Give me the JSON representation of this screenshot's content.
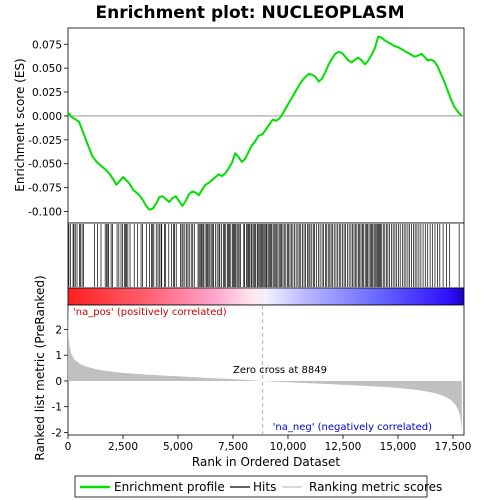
{
  "chart_data": {
    "type": "line",
    "title": "Enrichment plot: NUCLEOPLASM",
    "es_panel": {
      "ylabel": "Enrichment score (ES)",
      "ylim": [
        -0.112,
        0.092
      ],
      "yticks": [
        -0.1,
        -0.075,
        -0.05,
        -0.025,
        0.0,
        0.025,
        0.05,
        0.075
      ],
      "ytick_labels": [
        "-0.100",
        "-0.075",
        "-0.050",
        "-0.025",
        "0.000",
        "0.025",
        "0.050",
        "0.075"
      ],
      "series": [
        {
          "name": "Enrichment profile",
          "color": "#00e000",
          "x": [
            0,
            150,
            300,
            500,
            700,
            900,
            1100,
            1300,
            1500,
            1700,
            1900,
            2050,
            2200,
            2350,
            2500,
            2650,
            2800,
            2950,
            3100,
            3250,
            3400,
            3550,
            3700,
            3850,
            4000,
            4150,
            4300,
            4450,
            4600,
            4750,
            4900,
            5050,
            5200,
            5350,
            5500,
            5650,
            5800,
            5950,
            6100,
            6250,
            6400,
            6550,
            6700,
            6850,
            7000,
            7150,
            7300,
            7450,
            7600,
            7750,
            7900,
            8050,
            8200,
            8350,
            8500,
            8650,
            8850,
            9000,
            9150,
            9300,
            9450,
            9600,
            9750,
            9900,
            10050,
            10200,
            10350,
            10500,
            10650,
            10800,
            10950,
            11100,
            11250,
            11400,
            11550,
            11700,
            11850,
            12000,
            12150,
            12300,
            12450,
            12600,
            12750,
            12900,
            13050,
            13200,
            13350,
            13500,
            13650,
            13800,
            13950,
            14100,
            14250,
            14400,
            14550,
            14700,
            14850,
            15000,
            15150,
            15300,
            15450,
            15600,
            15750,
            15900,
            16050,
            16200,
            16350,
            16500,
            16650,
            16800,
            16950,
            17100,
            17250,
            17400,
            17550,
            17700,
            17900
          ],
          "y": [
            0.004,
            -0.001,
            -0.003,
            -0.006,
            -0.018,
            -0.03,
            -0.042,
            -0.048,
            -0.052,
            -0.056,
            -0.061,
            -0.066,
            -0.072,
            -0.068,
            -0.064,
            -0.067,
            -0.071,
            -0.077,
            -0.08,
            -0.083,
            -0.088,
            -0.094,
            -0.098,
            -0.097,
            -0.092,
            -0.085,
            -0.084,
            -0.087,
            -0.09,
            -0.086,
            -0.084,
            -0.089,
            -0.094,
            -0.089,
            -0.082,
            -0.079,
            -0.08,
            -0.083,
            -0.077,
            -0.072,
            -0.07,
            -0.067,
            -0.064,
            -0.061,
            -0.063,
            -0.06,
            -0.055,
            -0.049,
            -0.039,
            -0.043,
            -0.048,
            -0.045,
            -0.038,
            -0.031,
            -0.027,
            -0.021,
            -0.019,
            -0.014,
            -0.009,
            -0.004,
            -0.005,
            -0.003,
            0.002,
            0.008,
            0.014,
            0.02,
            0.026,
            0.032,
            0.037,
            0.041,
            0.044,
            0.043,
            0.041,
            0.036,
            0.039,
            0.046,
            0.054,
            0.06,
            0.065,
            0.067,
            0.066,
            0.062,
            0.058,
            0.056,
            0.059,
            0.061,
            0.058,
            0.054,
            0.058,
            0.064,
            0.071,
            0.083,
            0.082,
            0.079,
            0.077,
            0.075,
            0.073,
            0.072,
            0.07,
            0.068,
            0.066,
            0.064,
            0.062,
            0.063,
            0.065,
            0.062,
            0.058,
            0.059,
            0.057,
            0.052,
            0.044,
            0.036,
            0.027,
            0.018,
            0.01,
            0.005,
            0.0
          ]
        }
      ]
    },
    "rank_panel": {
      "ylabel": "Ranked list metric (PreRanked)",
      "xlabel": "Rank in Ordered Dataset",
      "ylim": [
        -2.1,
        2.95
      ],
      "yticks": [
        -2,
        -1,
        0,
        1,
        2
      ],
      "ytick_labels": [
        "-2",
        "-1",
        "0",
        "1",
        "2"
      ],
      "xlim": [
        0,
        18000
      ],
      "xticks": [
        0,
        2500,
        5000,
        7500,
        10000,
        12500,
        15000,
        17500
      ],
      "xtick_labels": [
        "0",
        "2,500",
        "5,000",
        "7,500",
        "10,000",
        "12,500",
        "15,000",
        "17,500"
      ],
      "metric_curve": {
        "x": [
          0,
          30,
          80,
          150,
          250,
          400,
          600,
          900,
          1300,
          1800,
          2500,
          3500,
          4500,
          5500,
          6500,
          7500,
          8200,
          8849,
          9500,
          10500,
          11500,
          12500,
          13500,
          14500,
          15200,
          15800,
          16300,
          16700,
          17000,
          17200,
          17400,
          17550,
          17650,
          17750,
          17820,
          17880,
          17900
        ],
        "y": [
          2.9,
          1.7,
          1.3,
          1.05,
          0.88,
          0.75,
          0.64,
          0.54,
          0.45,
          0.38,
          0.31,
          0.25,
          0.2,
          0.16,
          0.11,
          0.07,
          0.03,
          0.0,
          -0.03,
          -0.07,
          -0.11,
          -0.15,
          -0.19,
          -0.24,
          -0.29,
          -0.34,
          -0.41,
          -0.48,
          -0.56,
          -0.64,
          -0.74,
          -0.86,
          -0.98,
          -1.15,
          -1.35,
          -1.75,
          -1.9
        ]
      },
      "zero_cross": 8849,
      "zero_cross_label": "Zero cross at 8849",
      "pos_label": "'na_pos' (positively correlated)",
      "neg_label": "'na_neg' (negatively correlated)"
    },
    "hits": [
      40,
      110,
      230,
      270,
      330,
      410,
      520,
      560,
      640,
      700,
      1210,
      1340,
      1500,
      1690,
      1750,
      1810,
      1850,
      1960,
      2030,
      2230,
      2310,
      2410,
      2470,
      2560,
      2620,
      2660,
      2720,
      2820,
      3010,
      3160,
      3320,
      3390,
      3560,
      3700,
      3790,
      3850,
      3900,
      4010,
      4090,
      4150,
      4230,
      4260,
      4380,
      4440,
      4580,
      4700,
      4790,
      4840,
      4920,
      5120,
      5180,
      5230,
      5310,
      5380,
      5450,
      5510,
      5600,
      5670,
      5740,
      5910,
      5960,
      6010,
      6060,
      6100,
      6160,
      6230,
      6290,
      6340,
      6400,
      6450,
      6510,
      6580,
      6620,
      6700,
      6780,
      6860,
      6900,
      6980,
      7060,
      7120,
      7170,
      7250,
      7300,
      7340,
      7400,
      7470,
      7520,
      7570,
      7620,
      7680,
      7730,
      7780,
      7840,
      7990,
      8030,
      8120,
      8170,
      8210,
      8250,
      8320,
      8360,
      8420,
      8470,
      8520,
      8600,
      8640,
      8690,
      8740,
      8790,
      8850,
      8900,
      8950,
      9000,
      9040,
      9100,
      9150,
      9200,
      9250,
      9320,
      9370,
      9420,
      9470,
      9540,
      9600,
      9650,
      9710,
      9770,
      9830,
      9900,
      9970,
      10030,
      10090,
      10150,
      10220,
      10300,
      10370,
      10450,
      10510,
      10580,
      10660,
      10730,
      10800,
      10880,
      10950,
      11000,
      11080,
      11150,
      11210,
      11300,
      11380,
      11460,
      11550,
      11620,
      11700,
      11760,
      11830,
      11900,
      11960,
      12030,
      12100,
      12180,
      12260,
      12330,
      12400,
      12470,
      12550,
      12620,
      12700,
      12780,
      12860,
      12930,
      13000,
      13060,
      13130,
      13200,
      13260,
      13320,
      13380,
      13440,
      13510,
      13570,
      13620,
      13680,
      13740,
      13790,
      13850,
      13910,
      13960,
      14010,
      14060,
      14110,
      14160,
      14210,
      14260,
      14330,
      14400,
      14470,
      14540,
      14620,
      14700,
      14780,
      14860,
      14940,
      15020,
      15100,
      15200,
      15280,
      15360,
      15450,
      15530,
      15610,
      15700,
      15780,
      15860,
      15950,
      16040,
      16140,
      16240,
      16350,
      16460,
      16560,
      16680,
      16800,
      16900,
      17050,
      17200,
      17350,
      17780
    ],
    "legend": {
      "items": [
        "Enrichment profile",
        "Hits",
        "Ranking metric scores"
      ],
      "placement": "bottom"
    },
    "colors": {
      "profile": "#00e000",
      "hits": "#000000",
      "pos_text": "#cc0000",
      "neg_text": "#0000cc",
      "metric_fill": "#c0c0c0",
      "zero_cross_line": "#a0a0a0"
    }
  }
}
